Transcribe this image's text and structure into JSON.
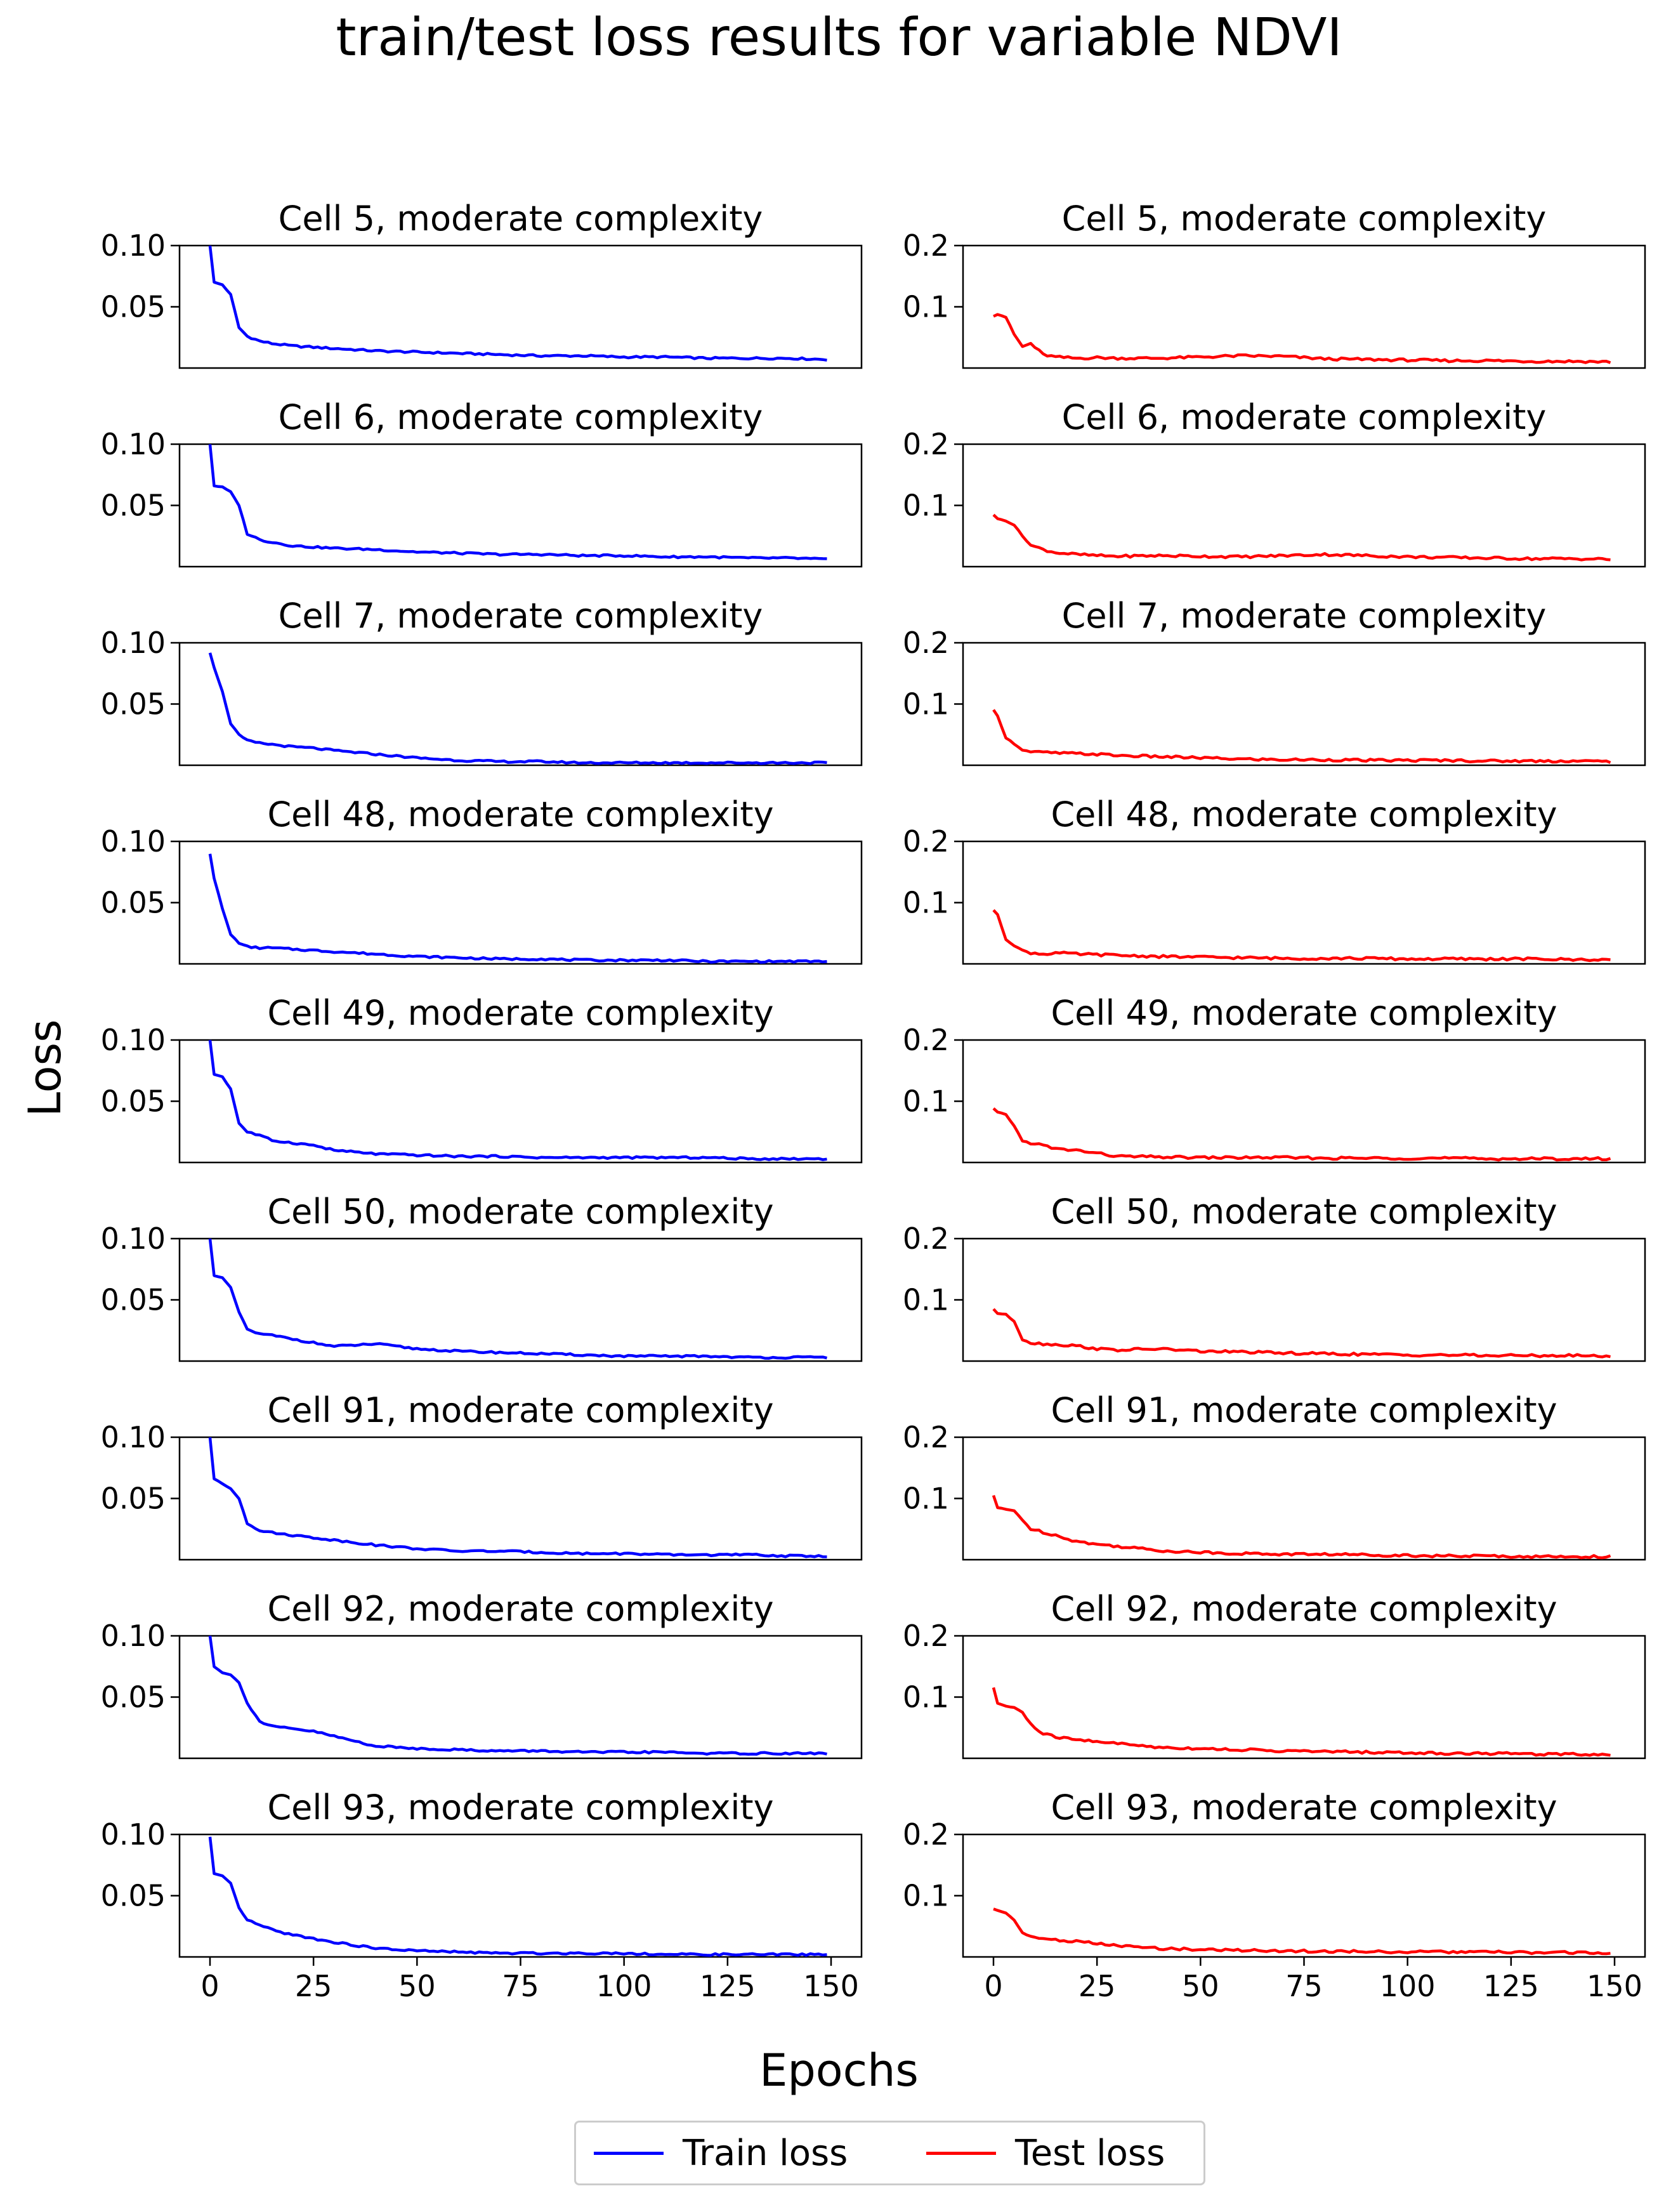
{
  "figure": {
    "title": "train/test loss results for variable NDVI",
    "xlabel": "Epochs",
    "ylabel": "Loss",
    "legend": [
      {
        "label": "Train loss",
        "color": "#0000ff"
      },
      {
        "label": "Test loss",
        "color": "#ff0000"
      }
    ]
  },
  "chart_data": {
    "type": "line",
    "x_range": [
      0,
      149
    ],
    "xticks": [
      "0",
      "25",
      "50",
      "75",
      "100",
      "125",
      "150"
    ],
    "xticks_shown_on": "bottom row only",
    "train_ylim": [
      0,
      0.1
    ],
    "train_yticks": [
      "0.05",
      "0.10"
    ],
    "test_ylim": [
      0,
      0.2
    ],
    "test_yticks": [
      "0.1",
      "0.2"
    ],
    "train_color": "#0000ff",
    "test_color": "#ff0000",
    "train_note": "x values are epochs 0..149 (1 point per epoch); y values sampled at the listed epochs",
    "sample_epochs": [
      0,
      1,
      3,
      5,
      7,
      9,
      12,
      15,
      20,
      25,
      30,
      40,
      50,
      60,
      70,
      80,
      90,
      100,
      110,
      120,
      130,
      140,
      149
    ],
    "panels": [
      {
        "title": "Cell 5, moderate complexity",
        "train": [
          0.1,
          0.07,
          0.068,
          0.06,
          0.033,
          0.026,
          0.022,
          0.02,
          0.018,
          0.017,
          0.016,
          0.014,
          0.013,
          0.012,
          0.011,
          0.01,
          0.01,
          0.009,
          0.009,
          0.008,
          0.008,
          0.008,
          0.007
        ],
        "test": [
          0.085,
          0.088,
          0.083,
          0.055,
          0.035,
          0.04,
          0.022,
          0.018,
          0.016,
          0.017,
          0.016,
          0.016,
          0.018,
          0.02,
          0.019,
          0.015,
          0.014,
          0.013,
          0.012,
          0.012,
          0.011,
          0.011,
          0.01
        ]
      },
      {
        "title": "Cell 6, moderate complexity",
        "train": [
          0.1,
          0.066,
          0.065,
          0.061,
          0.05,
          0.027,
          0.022,
          0.02,
          0.017,
          0.016,
          0.015,
          0.014,
          0.012,
          0.011,
          0.01,
          0.01,
          0.009,
          0.009,
          0.008,
          0.008,
          0.007,
          0.007,
          0.006
        ],
        "test": [
          0.085,
          0.078,
          0.075,
          0.068,
          0.05,
          0.035,
          0.028,
          0.023,
          0.02,
          0.018,
          0.017,
          0.018,
          0.017,
          0.016,
          0.018,
          0.02,
          0.018,
          0.016,
          0.015,
          0.014,
          0.013,
          0.013,
          0.012
        ]
      },
      {
        "title": "Cell 7, moderate complexity",
        "train": [
          0.092,
          0.08,
          0.06,
          0.034,
          0.025,
          0.02,
          0.018,
          0.017,
          0.015,
          0.014,
          0.012,
          0.009,
          0.006,
          0.004,
          0.003,
          0.003,
          0.002,
          0.002,
          0.002,
          0.002,
          0.002,
          0.002,
          0.002
        ],
        "test": [
          0.09,
          0.08,
          0.045,
          0.035,
          0.025,
          0.022,
          0.021,
          0.02,
          0.019,
          0.018,
          0.016,
          0.014,
          0.012,
          0.01,
          0.009,
          0.009,
          0.008,
          0.008,
          0.008,
          0.007,
          0.007,
          0.007,
          0.006
        ]
      },
      {
        "title": "Cell 48, moderate complexity",
        "train": [
          0.09,
          0.07,
          0.045,
          0.024,
          0.017,
          0.014,
          0.013,
          0.013,
          0.012,
          0.011,
          0.01,
          0.008,
          0.006,
          0.005,
          0.004,
          0.004,
          0.003,
          0.003,
          0.003,
          0.002,
          0.002,
          0.002,
          0.002
        ],
        "test": [
          0.088,
          0.08,
          0.04,
          0.03,
          0.022,
          0.018,
          0.016,
          0.018,
          0.016,
          0.015,
          0.014,
          0.012,
          0.011,
          0.01,
          0.009,
          0.009,
          0.009,
          0.008,
          0.008,
          0.008,
          0.008,
          0.007,
          0.007
        ]
      },
      {
        "title": "Cell 49, moderate complexity",
        "train": [
          0.1,
          0.072,
          0.07,
          0.06,
          0.032,
          0.025,
          0.022,
          0.018,
          0.016,
          0.014,
          0.01,
          0.007,
          0.006,
          0.005,
          0.005,
          0.004,
          0.004,
          0.004,
          0.004,
          0.004,
          0.003,
          0.003,
          0.003
        ],
        "test": [
          0.088,
          0.082,
          0.078,
          0.06,
          0.035,
          0.032,
          0.028,
          0.022,
          0.02,
          0.015,
          0.01,
          0.009,
          0.008,
          0.008,
          0.008,
          0.007,
          0.007,
          0.007,
          0.007,
          0.006,
          0.006,
          0.006,
          0.006
        ]
      },
      {
        "title": "Cell 50, moderate complexity",
        "train": [
          0.1,
          0.07,
          0.068,
          0.06,
          0.04,
          0.026,
          0.022,
          0.021,
          0.018,
          0.015,
          0.012,
          0.014,
          0.01,
          0.008,
          0.007,
          0.006,
          0.005,
          0.004,
          0.004,
          0.004,
          0.003,
          0.003,
          0.003
        ],
        "test": [
          0.085,
          0.078,
          0.076,
          0.065,
          0.035,
          0.03,
          0.028,
          0.027,
          0.025,
          0.02,
          0.018,
          0.02,
          0.016,
          0.015,
          0.013,
          0.012,
          0.011,
          0.01,
          0.01,
          0.009,
          0.009,
          0.009,
          0.008
        ]
      },
      {
        "title": "Cell 91, moderate complexity",
        "train": [
          0.1,
          0.066,
          0.062,
          0.058,
          0.05,
          0.03,
          0.024,
          0.022,
          0.02,
          0.018,
          0.016,
          0.012,
          0.009,
          0.007,
          0.007,
          0.006,
          0.005,
          0.005,
          0.004,
          0.004,
          0.004,
          0.003,
          0.003
        ],
        "test": [
          0.105,
          0.085,
          0.082,
          0.08,
          0.065,
          0.05,
          0.045,
          0.04,
          0.03,
          0.025,
          0.022,
          0.015,
          0.012,
          0.01,
          0.009,
          0.009,
          0.008,
          0.007,
          0.006,
          0.006,
          0.005,
          0.005,
          0.005
        ]
      },
      {
        "title": "Cell 92, moderate complexity",
        "train": [
          0.1,
          0.075,
          0.07,
          0.068,
          0.062,
          0.045,
          0.03,
          0.026,
          0.024,
          0.022,
          0.018,
          0.01,
          0.008,
          0.007,
          0.006,
          0.006,
          0.005,
          0.005,
          0.005,
          0.004,
          0.004,
          0.004,
          0.004
        ],
        "test": [
          0.115,
          0.09,
          0.085,
          0.083,
          0.075,
          0.055,
          0.04,
          0.035,
          0.03,
          0.028,
          0.024,
          0.018,
          0.016,
          0.014,
          0.012,
          0.011,
          0.01,
          0.009,
          0.008,
          0.008,
          0.007,
          0.007,
          0.006
        ]
      },
      {
        "title": "Cell 93, moderate complexity",
        "train": [
          0.098,
          0.068,
          0.066,
          0.06,
          0.04,
          0.03,
          0.026,
          0.022,
          0.018,
          0.015,
          0.012,
          0.007,
          0.005,
          0.004,
          0.003,
          0.003,
          0.003,
          0.003,
          0.002,
          0.002,
          0.002,
          0.002,
          0.002
        ],
        "test": [
          0.078,
          0.076,
          0.072,
          0.06,
          0.04,
          0.032,
          0.03,
          0.028,
          0.025,
          0.022,
          0.018,
          0.014,
          0.012,
          0.011,
          0.01,
          0.009,
          0.009,
          0.008,
          0.008,
          0.008,
          0.007,
          0.007,
          0.007
        ]
      }
    ]
  }
}
